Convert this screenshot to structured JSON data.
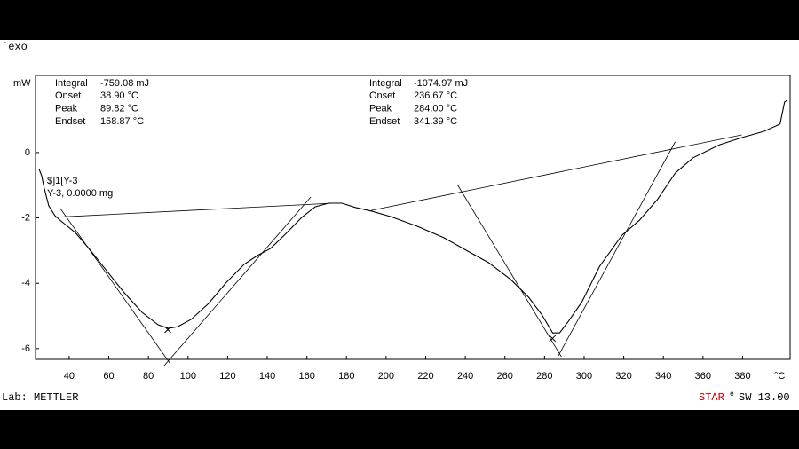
{
  "chart_data": {
    "type": "line",
    "exo_label": "ˆexo",
    "y_label": "mW",
    "x_unit": "°C",
    "color": "#000000",
    "xlim": [
      23,
      404
    ],
    "ylim": [
      -6.33,
      2.36
    ],
    "xticks": [
      40,
      60,
      80,
      100,
      120,
      140,
      160,
      180,
      200,
      220,
      240,
      260,
      280,
      300,
      320,
      340,
      360,
      380
    ],
    "yticks": [
      0,
      -2,
      -4,
      -6
    ],
    "x": [
      24.7,
      26.1,
      27.4,
      29.7,
      32.8,
      36.4,
      43.1,
      49.9,
      58.8,
      67.8,
      76.8,
      84.9,
      90.2,
      94.7,
      101.5,
      110.4,
      119.4,
      128.4,
      135.1,
      141.8,
      148.6,
      157.5,
      164.3,
      171.0,
      177.7,
      184.5,
      192.5,
      202.4,
      215.9,
      229.3,
      242.8,
      251.8,
      263.0,
      272.0,
      278.7,
      284.1,
      287.6,
      292.1,
      298.9,
      307.8,
      319.1,
      328.0,
      337.0,
      346.0,
      355.0,
      368.4,
      379.6,
      390.8,
      398.9,
      401.2,
      402.5
    ],
    "values": [
      -0.49,
      -0.71,
      -1.09,
      -1.63,
      -1.93,
      -2.12,
      -2.45,
      -2.93,
      -3.61,
      -4.29,
      -4.89,
      -5.27,
      -5.38,
      -5.33,
      -5.11,
      -4.62,
      -3.97,
      -3.42,
      -3.15,
      -2.93,
      -2.53,
      -1.98,
      -1.66,
      -1.55,
      -1.55,
      -1.68,
      -1.79,
      -1.96,
      -2.26,
      -2.61,
      -3.07,
      -3.37,
      -3.89,
      -4.43,
      -4.97,
      -5.52,
      -5.52,
      -5.16,
      -4.57,
      -3.48,
      -2.53,
      -2.07,
      -1.44,
      -0.63,
      -0.16,
      0.24,
      0.46,
      0.65,
      0.87,
      1.55,
      1.6
    ],
    "reference_lines": [
      {
        "x1": 32.8,
        "y1": -1.98,
        "x2": 173.2,
        "y2": -1.55
      },
      {
        "x1": 35.5,
        "y1": -1.71,
        "x2": 91.1,
        "y2": -6.47
      },
      {
        "x1": 88.0,
        "y1": -6.52,
        "x2": 162.0,
        "y2": -1.36
      },
      {
        "x1": 192.5,
        "y1": -1.77,
        "x2": 379.6,
        "y2": 0.54
      },
      {
        "x1": 236.0,
        "y1": -0.98,
        "x2": 288.5,
        "y2": -6.25
      },
      {
        "x1": 286.7,
        "y1": -6.25,
        "x2": 346.0,
        "y2": 0.33
      }
    ],
    "markers": [
      {
        "x": 89.8,
        "y": -5.42
      },
      {
        "x": 284.0,
        "y": -5.69
      }
    ],
    "annotations": [
      {
        "rows": [
          {
            "label": "Integral",
            "value": "-759.08 mJ"
          },
          {
            "label": "Onset",
            "value": "38.90 °C"
          },
          {
            "label": "Peak",
            "value": "89.82 °C"
          },
          {
            "label": "Endset",
            "value": "158.87 °C"
          }
        ]
      },
      {
        "rows": [
          {
            "label": "Integral",
            "value": "-1074.97 mJ"
          },
          {
            "label": "Onset",
            "value": "236.67 °C"
          },
          {
            "label": "Peak",
            "value": "284.00 °C"
          },
          {
            "label": "Endset",
            "value": "341.39 °C"
          }
        ]
      }
    ],
    "sample_lines": [
      "$]1[Y-3",
      "Y-3, 0.0000 mg"
    ],
    "footer_left": "Lab: METTLER",
    "footer_brand": "STAR",
    "footer_brand_sup": "e",
    "footer_version": "SW 13.00"
  }
}
